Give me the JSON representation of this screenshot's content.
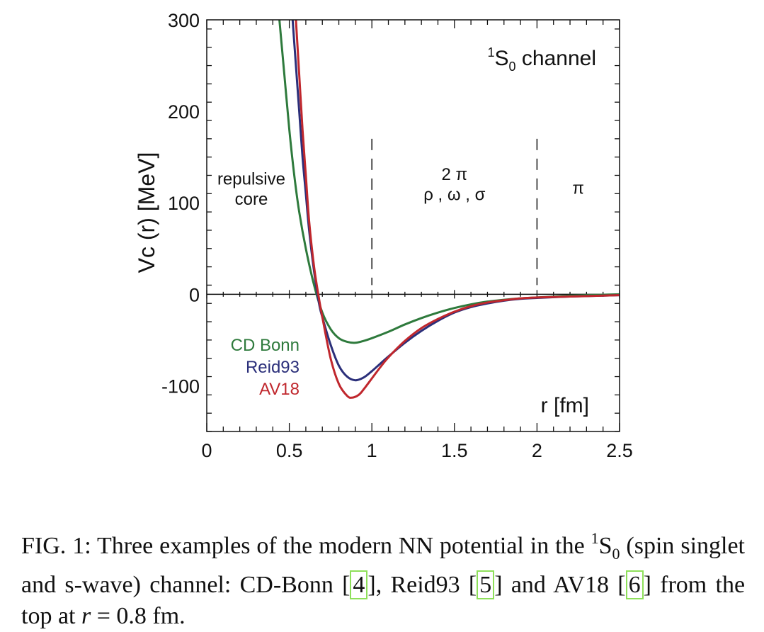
{
  "chart_data": {
    "type": "line",
    "xlabel": "r [fm]",
    "ylabel": "Vc (r) [MeV]",
    "xlim": [
      0,
      2.5
    ],
    "ylim": [
      -150,
      300
    ],
    "x_ticks": [
      "0",
      "0.5",
      "1",
      "1.5",
      "2",
      "2.5"
    ],
    "y_ticks": [
      "-100",
      "0",
      "100",
      "200",
      "300"
    ],
    "x_tick_values": [
      0,
      0.5,
      1,
      1.5,
      2,
      2.5
    ],
    "y_tick_values": [
      -100,
      0,
      100,
      200,
      300
    ],
    "legend_position": "lower-left",
    "channel_label": {
      "main": "S",
      "sup": "1",
      "sub": "0",
      "rest": " channel"
    },
    "region_labels": [
      {
        "lines": [
          "repulsive",
          "core"
        ],
        "x": 0.27,
        "y": [
          120,
          98
        ]
      },
      {
        "lines": [
          "2 π",
          "ρ , ω , σ"
        ],
        "x": 1.5,
        "y": [
          125,
          103
        ]
      },
      {
        "lines": [
          "π"
        ],
        "x": 2.25,
        "y": [
          110
        ]
      }
    ],
    "dividers": [
      1,
      2
    ],
    "series": [
      {
        "name": "CD Bonn",
        "color": "#2e7a3c",
        "x": [
          0.44,
          0.47,
          0.5,
          0.53,
          0.56,
          0.6,
          0.65,
          0.7,
          0.75,
          0.8,
          0.85,
          0.9,
          0.95,
          1.0,
          1.1,
          1.2,
          1.3,
          1.4,
          1.5,
          1.6,
          1.7,
          1.8,
          1.9,
          2.0,
          2.1,
          2.2,
          2.3,
          2.4,
          2.5
        ],
        "y": [
          300,
          240,
          180,
          130,
          90,
          50,
          10,
          -20,
          -38,
          -48,
          -52,
          -53,
          -51,
          -48,
          -41,
          -33,
          -26,
          -20,
          -15,
          -11,
          -8,
          -6,
          -4.5,
          -3.5,
          -2.5,
          -1.5,
          -1,
          -0.5,
          0
        ]
      },
      {
        "name": "Reid93",
        "color": "#2b2f7a",
        "x": [
          0.52,
          0.54,
          0.56,
          0.58,
          0.6,
          0.62,
          0.65,
          0.68,
          0.7,
          0.75,
          0.8,
          0.85,
          0.9,
          0.95,
          1.0,
          1.05,
          1.1,
          1.2,
          1.3,
          1.4,
          1.5,
          1.6,
          1.7,
          1.8,
          1.9,
          2.0,
          2.2,
          2.4,
          2.5
        ],
        "y": [
          300,
          250,
          200,
          150,
          110,
          70,
          25,
          -10,
          -25,
          -55,
          -78,
          -90,
          -94,
          -91,
          -84,
          -76,
          -68,
          -53,
          -40,
          -29,
          -20,
          -14,
          -10,
          -7,
          -5,
          -4,
          -2.5,
          -1.5,
          -1
        ]
      },
      {
        "name": "AV18",
        "color": "#c0272d",
        "x": [
          0.54,
          0.56,
          0.58,
          0.6,
          0.62,
          0.65,
          0.68,
          0.7,
          0.75,
          0.8,
          0.85,
          0.88,
          0.92,
          0.95,
          1.0,
          1.05,
          1.1,
          1.2,
          1.3,
          1.4,
          1.5,
          1.6,
          1.7,
          1.8,
          1.9,
          2.0,
          2.2,
          2.4,
          2.5
        ],
        "y": [
          300,
          240,
          180,
          130,
          80,
          30,
          -5,
          -25,
          -70,
          -98,
          -111,
          -113,
          -110,
          -104,
          -92,
          -80,
          -69,
          -51,
          -37,
          -27,
          -19,
          -13,
          -9,
          -6.5,
          -4.5,
          -3.5,
          -2.5,
          -1.5,
          -1
        ]
      }
    ]
  },
  "caption": {
    "prefix": "FIG. 1: Three examples of the modern NN potential in the ",
    "sup": "1",
    "line2": "S",
    "sub": "0",
    "middle": " (spin singlet and s-wave) channel: CD-Bonn [",
    "ref1": "4",
    "after1": "], Reid93 [",
    "ref2": "5",
    "after2": "] and AV18 [",
    "ref3": "6",
    "after3": "] from the top at ",
    "math_r": "r",
    "math_rest": " = 0.8 fm."
  }
}
